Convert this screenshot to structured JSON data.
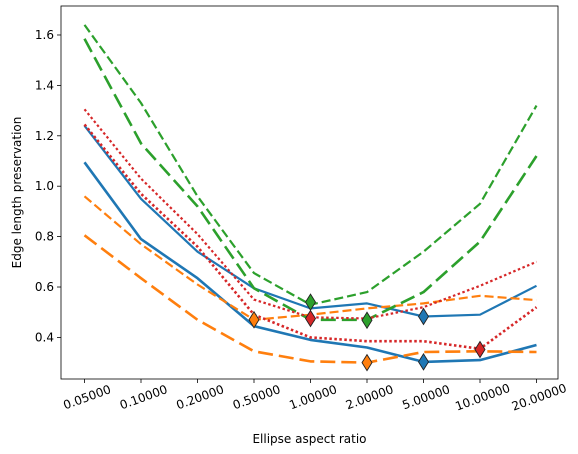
{
  "chart_data": {
    "type": "line",
    "title": "",
    "xlabel": "Ellipse aspect ratio",
    "ylabel": "Edge length preservation",
    "categories": [
      "0.05000",
      "0.10000",
      "0.20000",
      "0.50000",
      "1.00000",
      "2.00000",
      "5.00000",
      "10.00000",
      "20.00000"
    ],
    "ylim": [
      0.235,
      1.715
    ],
    "yticks": [
      "0.4",
      "0.6",
      "0.8",
      "1.0",
      "1.2",
      "1.4",
      "1.6"
    ],
    "grid": false,
    "legend": "none",
    "series": [
      {
        "color": "#1f77b4",
        "dash": "solid",
        "width": 2.2,
        "values": [
          1.24,
          0.95,
          0.74,
          0.595,
          0.515,
          0.535,
          0.483,
          0.49,
          0.605
        ]
      },
      {
        "color": "#1f77b4",
        "dash": "solid",
        "width": 2.6,
        "values": [
          1.095,
          0.79,
          0.635,
          0.445,
          0.39,
          0.36,
          0.303,
          0.31,
          0.37
        ]
      },
      {
        "color": "#ff7f0e",
        "dash": "dashed",
        "width": 2.2,
        "values": [
          0.96,
          0.77,
          0.61,
          0.47,
          0.49,
          0.515,
          0.535,
          0.565,
          0.548
        ]
      },
      {
        "color": "#ff7f0e",
        "dash": "longdash",
        "width": 2.6,
        "values": [
          0.805,
          0.635,
          0.47,
          0.345,
          0.305,
          0.3,
          0.342,
          0.345,
          0.342
        ]
      },
      {
        "color": "#2ca02c",
        "dash": "dashed",
        "width": 2.2,
        "values": [
          1.64,
          1.33,
          0.96,
          0.655,
          0.53,
          0.58,
          0.74,
          0.93,
          1.32
        ]
      },
      {
        "color": "#2ca02c",
        "dash": "longdash",
        "width": 2.6,
        "values": [
          1.585,
          1.17,
          0.92,
          0.595,
          0.47,
          0.47,
          0.58,
          0.78,
          1.12
        ]
      },
      {
        "color": "#d62728",
        "dash": "dotted",
        "width": 2.2,
        "values": [
          1.305,
          1.03,
          0.81,
          0.55,
          0.48,
          0.475,
          0.52,
          0.605,
          0.7
        ]
      },
      {
        "color": "#d62728",
        "dash": "dotted",
        "width": 2.6,
        "values": [
          1.245,
          0.97,
          0.76,
          0.49,
          0.4,
          0.385,
          0.385,
          0.355,
          0.52
        ]
      }
    ],
    "markers": [
      {
        "x": "0.50000",
        "y": 0.47,
        "color": "#ff7f0e"
      },
      {
        "x": "1.00000",
        "y": 0.54,
        "color": "#2ca02c"
      },
      {
        "x": "1.00000",
        "y": 0.475,
        "color": "#d62728"
      },
      {
        "x": "2.00000",
        "y": 0.468,
        "color": "#2ca02c"
      },
      {
        "x": "2.00000",
        "y": 0.3,
        "color": "#ff7f0e"
      },
      {
        "x": "5.00000",
        "y": 0.483,
        "color": "#1f77b4"
      },
      {
        "x": "5.00000",
        "y": 0.303,
        "color": "#1f77b4"
      },
      {
        "x": "10.00000",
        "y": 0.352,
        "color": "#d62728"
      }
    ]
  }
}
